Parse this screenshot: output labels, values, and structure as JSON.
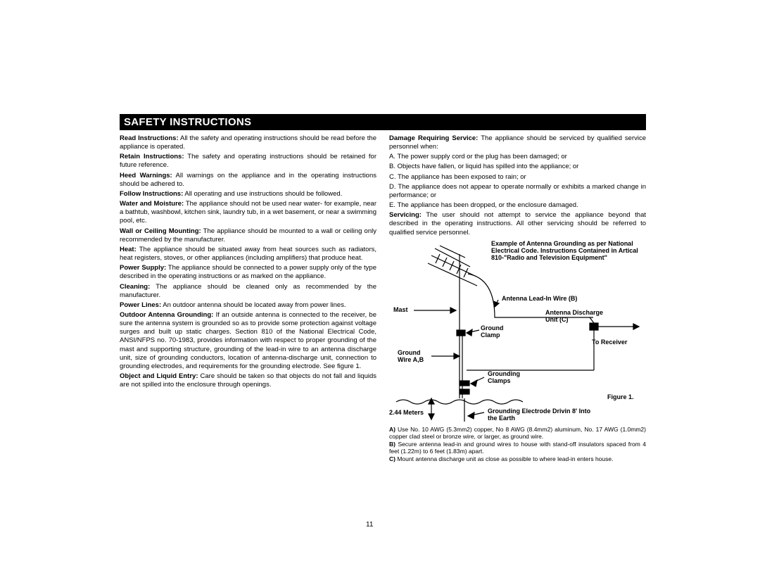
{
  "title": "SAFETY INSTRUCTIONS",
  "page_number": "11",
  "left_column": [
    {
      "bold": "Read Instructions:",
      "text": " All the safety and operating instructions should be read before the appliance is operated."
    },
    {
      "bold": "Retain Instructions:",
      "text": " The safety and operating instructions should be retained for future reference."
    },
    {
      "bold": "Heed Warnings:",
      "text": " All warnings on the appliance and in the operating instructions should be adhered to."
    },
    {
      "bold": "Follow Instructions:",
      "text": " All operating and use instructions should be followed."
    },
    {
      "bold": "Water and Moisture:",
      "text": " The appliance should not be used near water- for example, near a bathtub, washbowl, kitchen sink, laundry tub, in a wet basement, or near a swimming pool, etc."
    },
    {
      "bold": "Wall or Ceiling Mounting:",
      "text": " The appliance should be mounted to a wall or ceiling only recommended by the manufacturer."
    },
    {
      "bold": "Heat:",
      "text": " The appliance should be situated away from heat sources such as radiators, heat registers, stoves, or other appliances (including amplifiers) that produce heat."
    },
    {
      "bold": "Power Supply:",
      "text": " The appliance should be connected to a power supply only of the type described in the operating instructions or as marked on the appliance."
    },
    {
      "bold": "Cleaning:",
      "text": " The appliance should be cleaned only as recommended by the manufacturer."
    },
    {
      "bold": "Power Lines:",
      "text": " An outdoor antenna should be located away from power lines."
    },
    {
      "bold": "Outdoor Antenna Grounding:",
      "text": " If an outside antenna is connected to the receiver, be sure the antenna system is grounded so as to provide some protection against voltage surges and built up static charges. Section 810 of the National Electrical Code, ANSI/NFPS no. 70-1983, provides information with respect to proper grounding of the mast and supporting structure, grounding of the lead-in wire to an antenna discharge unit, size of grounding conductors, location of antenna-discharge unit, connection to grounding electrodes, and requirements for  the grounding electrode. See figure 1."
    },
    {
      "bold": "Object and Liquid Entry:",
      "text": " Care should be taken so that objects do not fall and liquids are not spilled into the enclosure through openings."
    }
  ],
  "right_column_top": [
    {
      "bold": "Damage Requiring Service:",
      "text": " The appliance should be serviced by qualified service personnel when:"
    },
    {
      "bold": "",
      "text": "A. The power supply cord or the plug has been damaged; or"
    },
    {
      "bold": "",
      "text": "B. Objects have fallen, or liquid has spilled into the appliance; or"
    },
    {
      "bold": "",
      "text": "C. The appliance has been exposed to rain; or"
    },
    {
      "bold": "",
      "text": "D. The appliance does not appear to operate normally or exhibits a marked change in performance; or"
    },
    {
      "bold": "",
      "text": "E. The appliance has been dropped, or the enclosure damaged."
    },
    {
      "bold": "Servicing:",
      "text": " The user should not attempt to service the appliance beyond that described in the operating instructions. All other servicing should be referred to qualified service personnel."
    }
  ],
  "figure": {
    "example_title": "Example of Antenna Grounding as per National Electrical Code. Instructions Contained in Artical 810-\"Radio and Television Equipment\"",
    "lead_in": "Antenna Lead-In Wire (B)",
    "mast": "Mast",
    "discharge": "Antenna Discharge Unit (C)",
    "ground_clamp": "Ground Clamp",
    "to_receiver": "To Receiver",
    "ground_wire": "Ground Wire A,B",
    "grounding_clamps": "Grounding Clamps",
    "figure_label": "Figure 1.",
    "meters": "2.44 Meters",
    "electrode": "Grounding Electrode Drivin 8' Into the Earth",
    "stroke": "#000000"
  },
  "notes": [
    {
      "bold": "A)",
      "text": " Use No. 10 AWG (5.3mm2) copper, No 8 AWG (8.4mm2) aluminum, No. 17 AWG (1.0mm2) copper clad steel or bronze wire, or larger, as ground wire."
    },
    {
      "bold": "B)",
      "text": " Secure antenna lead-in and ground wires to house with stand-off insulators spaced from 4 feet (1.22m) to 6 feet (1.83m) apart."
    },
    {
      "bold": "C)",
      "text": " Mount antenna discharge unit as close as possible to where lead-in enters house."
    }
  ]
}
